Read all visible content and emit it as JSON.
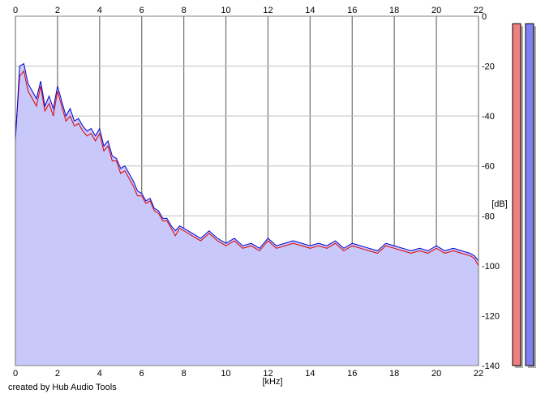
{
  "chart_data": {
    "type": "area",
    "xlabel": "[kHz]",
    "ylabel": "[dB]",
    "xlim": [
      0,
      22
    ],
    "ylim": [
      -140,
      0
    ],
    "x_ticks": [
      0,
      2,
      4,
      6,
      8,
      10,
      12,
      14,
      16,
      18,
      20,
      22
    ],
    "y_ticks": [
      0,
      -20,
      -40,
      -60,
      -80,
      -100,
      -120,
      -140
    ],
    "grid": true,
    "series": [
      {
        "color": "#e00000",
        "x": [
          0.0,
          0.2,
          0.4,
          0.6,
          0.8,
          1.0,
          1.2,
          1.4,
          1.6,
          1.8,
          2.0,
          2.2,
          2.4,
          2.6,
          2.8,
          3.0,
          3.2,
          3.4,
          3.6,
          3.8,
          4.0,
          4.2,
          4.4,
          4.6,
          4.8,
          5.0,
          5.2,
          5.4,
          5.6,
          5.8,
          6.0,
          6.2,
          6.4,
          6.6,
          6.8,
          7.0,
          7.2,
          7.4,
          7.6,
          7.8,
          8.0,
          8.4,
          8.8,
          9.2,
          9.6,
          10.0,
          10.4,
          10.8,
          11.2,
          11.6,
          12.0,
          12.4,
          12.8,
          13.2,
          13.6,
          14.0,
          14.4,
          14.8,
          15.2,
          15.6,
          16.0,
          16.4,
          16.8,
          17.2,
          17.6,
          18.0,
          18.4,
          18.8,
          19.2,
          19.6,
          20.0,
          20.4,
          20.8,
          21.2,
          21.6,
          21.8,
          22.0
        ],
        "y": [
          -48,
          -24,
          -22,
          -30,
          -33,
          -36,
          -28,
          -38,
          -35,
          -40,
          -30,
          -36,
          -42,
          -40,
          -44,
          -43,
          -46,
          -48,
          -47,
          -50,
          -47,
          -54,
          -52,
          -58,
          -58,
          -63,
          -62,
          -65,
          -68,
          -72,
          -72,
          -75,
          -74,
          -78,
          -79,
          -82,
          -82,
          -85,
          -88,
          -85,
          -86,
          -88,
          -90,
          -87,
          -90,
          -92,
          -90,
          -93,
          -92,
          -94,
          -90,
          -93,
          -92,
          -91,
          -92,
          -93,
          -92,
          -93,
          -91,
          -94,
          -92,
          -93,
          -94,
          -95,
          -92,
          -93,
          -94,
          -95,
          -94,
          -95,
          -93,
          -95,
          -94,
          -95,
          -96,
          -97,
          -100
        ]
      },
      {
        "color": "#0000cc",
        "x": [
          0.0,
          0.2,
          0.4,
          0.6,
          0.8,
          1.0,
          1.2,
          1.4,
          1.6,
          1.8,
          2.0,
          2.2,
          2.4,
          2.6,
          2.8,
          3.0,
          3.2,
          3.4,
          3.6,
          3.8,
          4.0,
          4.2,
          4.4,
          4.6,
          4.8,
          5.0,
          5.2,
          5.4,
          5.6,
          5.8,
          6.0,
          6.2,
          6.4,
          6.6,
          6.8,
          7.0,
          7.2,
          7.4,
          7.6,
          7.8,
          8.0,
          8.4,
          8.8,
          9.2,
          9.6,
          10.0,
          10.4,
          10.8,
          11.2,
          11.6,
          12.0,
          12.4,
          12.8,
          13.2,
          13.6,
          14.0,
          14.4,
          14.8,
          15.2,
          15.6,
          16.0,
          16.4,
          16.8,
          17.2,
          17.6,
          18.0,
          18.4,
          18.8,
          19.2,
          19.6,
          20.0,
          20.4,
          20.8,
          21.2,
          21.6,
          21.8,
          22.0
        ],
        "y": [
          -50,
          -20,
          -19,
          -27,
          -30,
          -33,
          -26,
          -36,
          -32,
          -37,
          -28,
          -34,
          -40,
          -37,
          -42,
          -41,
          -44,
          -46,
          -45,
          -48,
          -45,
          -52,
          -50,
          -56,
          -57,
          -61,
          -60,
          -63,
          -66,
          -70,
          -71,
          -74,
          -73,
          -77,
          -78,
          -81,
          -81,
          -84,
          -86,
          -84,
          -85,
          -87,
          -89,
          -86,
          -89,
          -91,
          -89,
          -92,
          -91,
          -93,
          -89,
          -92,
          -91,
          -90,
          -91,
          -92,
          -91,
          -92,
          -90,
          -93,
          -91,
          -92,
          -93,
          -94,
          -91,
          -92,
          -93,
          -94,
          -93,
          -94,
          -92,
          -94,
          -93,
          -94,
          -95,
          -96,
          -98
        ]
      }
    ]
  },
  "meters": [
    {
      "color": "#f08080",
      "level_db": -3
    },
    {
      "color": "#8080f0",
      "level_db": -3
    }
  ],
  "credit": "created by Hub Audio Tools"
}
